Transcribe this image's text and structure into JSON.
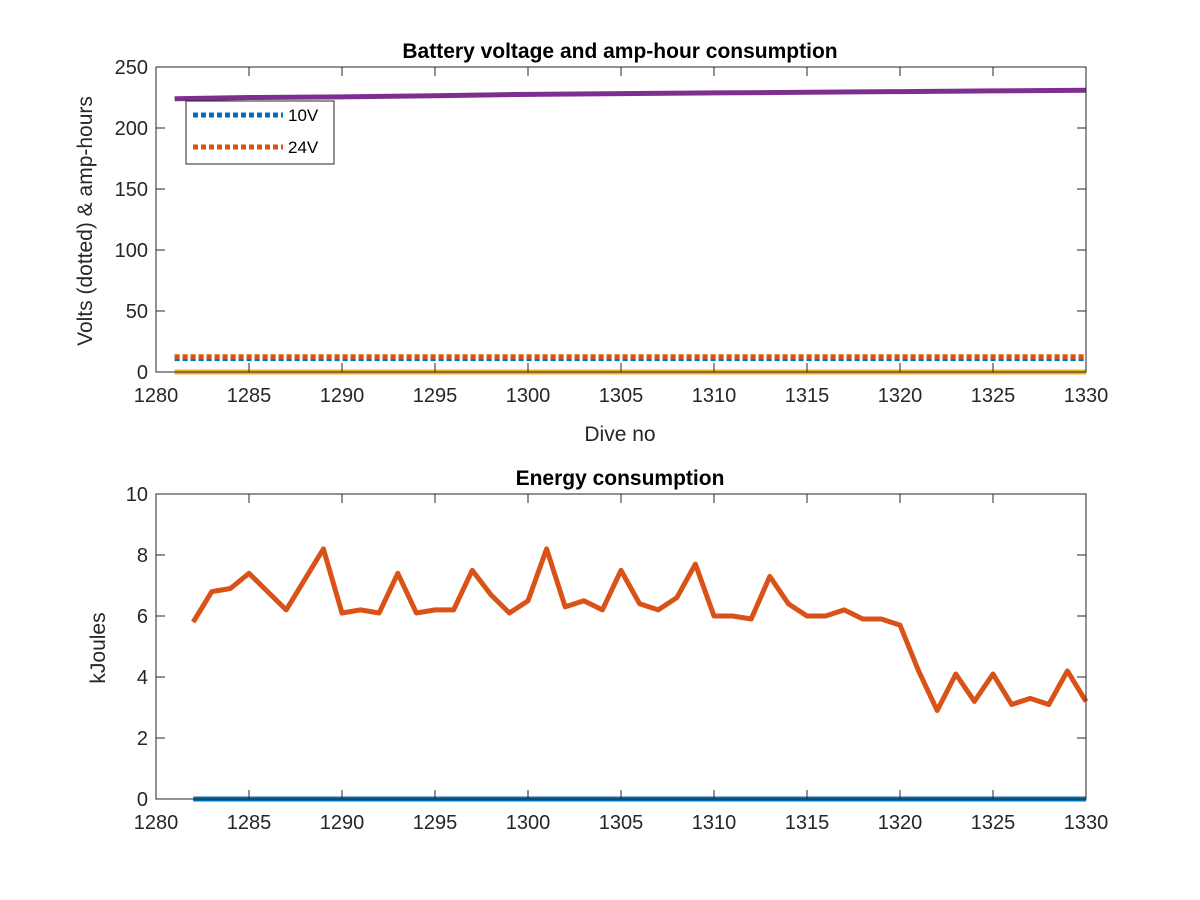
{
  "colors": {
    "blue": "#0072BD",
    "orange": "#D95319",
    "yellow": "#EDB120",
    "purple": "#7E2F8E",
    "axis": "#262626",
    "background": "#ffffff"
  },
  "chart_data": [
    {
      "type": "line",
      "title": "Battery voltage and amp-hour consumption",
      "xlabel": "Dive no",
      "ylabel": "Volts (dotted) & amp-hours",
      "xlim": [
        1280,
        1330
      ],
      "ylim": [
        0,
        250
      ],
      "xticks": [
        1280,
        1285,
        1290,
        1295,
        1300,
        1305,
        1310,
        1315,
        1320,
        1325,
        1330
      ],
      "yticks": [
        0,
        50,
        100,
        150,
        200,
        250
      ],
      "grid": false,
      "legend_position": "top-left",
      "series": [
        {
          "name": "10V",
          "style": "dotted",
          "color": "#0072BD",
          "x": [
            1281,
            1330
          ],
          "y": [
            11,
            11
          ]
        },
        {
          "name": "24V",
          "style": "dotted",
          "color": "#D95319",
          "x": [
            1281,
            1330
          ],
          "y": [
            12.5,
            12.5
          ]
        },
        {
          "style": "solid",
          "color": "#EDB120",
          "x": [
            1281,
            1330
          ],
          "y": [
            0,
            0
          ]
        },
        {
          "style": "solid",
          "color": "#7E2F8E",
          "x": [
            1281,
            1285,
            1290,
            1295,
            1300,
            1305,
            1310,
            1315,
            1320,
            1325,
            1330
          ],
          "y": [
            224,
            225,
            225.5,
            226.5,
            227.5,
            228.2,
            228.8,
            229.3,
            229.8,
            230.4,
            231
          ]
        }
      ]
    },
    {
      "type": "line",
      "title": "Energy consumption",
      "xlabel": "",
      "ylabel": "kJoules",
      "xlim": [
        1280,
        1330
      ],
      "ylim": [
        0,
        10
      ],
      "xticks": [
        1280,
        1285,
        1290,
        1295,
        1300,
        1305,
        1310,
        1315,
        1320,
        1325,
        1330
      ],
      "yticks": [
        0,
        2,
        4,
        6,
        8,
        10
      ],
      "grid": false,
      "series": [
        {
          "style": "solid",
          "color": "#0072BD",
          "x": [
            1282,
            1330
          ],
          "y": [
            0,
            0
          ]
        },
        {
          "style": "solid",
          "color": "#D95319",
          "x": [
            1282,
            1283,
            1284,
            1285,
            1286,
            1287,
            1288,
            1289,
            1290,
            1291,
            1292,
            1293,
            1294,
            1295,
            1296,
            1297,
            1298,
            1299,
            1300,
            1301,
            1302,
            1303,
            1304,
            1305,
            1306,
            1307,
            1308,
            1309,
            1310,
            1311,
            1312,
            1313,
            1314,
            1315,
            1316,
            1317,
            1318,
            1319,
            1320,
            1321,
            1322,
            1323,
            1324,
            1325,
            1326,
            1327,
            1328,
            1329,
            1330
          ],
          "y": [
            5.8,
            6.8,
            6.9,
            7.4,
            6.8,
            6.2,
            7.2,
            8.2,
            6.1,
            6.2,
            6.1,
            7.4,
            6.1,
            6.2,
            6.2,
            7.5,
            6.7,
            6.1,
            6.5,
            8.2,
            6.3,
            6.5,
            6.2,
            7.5,
            6.4,
            6.2,
            6.6,
            7.7,
            6.0,
            6.0,
            5.9,
            7.3,
            6.4,
            6.0,
            6.0,
            6.2,
            5.9,
            5.9,
            5.7,
            4.2,
            2.9,
            4.1,
            3.2,
            4.1,
            3.1,
            3.3,
            3.1,
            4.2,
            3.2
          ]
        }
      ]
    }
  ]
}
